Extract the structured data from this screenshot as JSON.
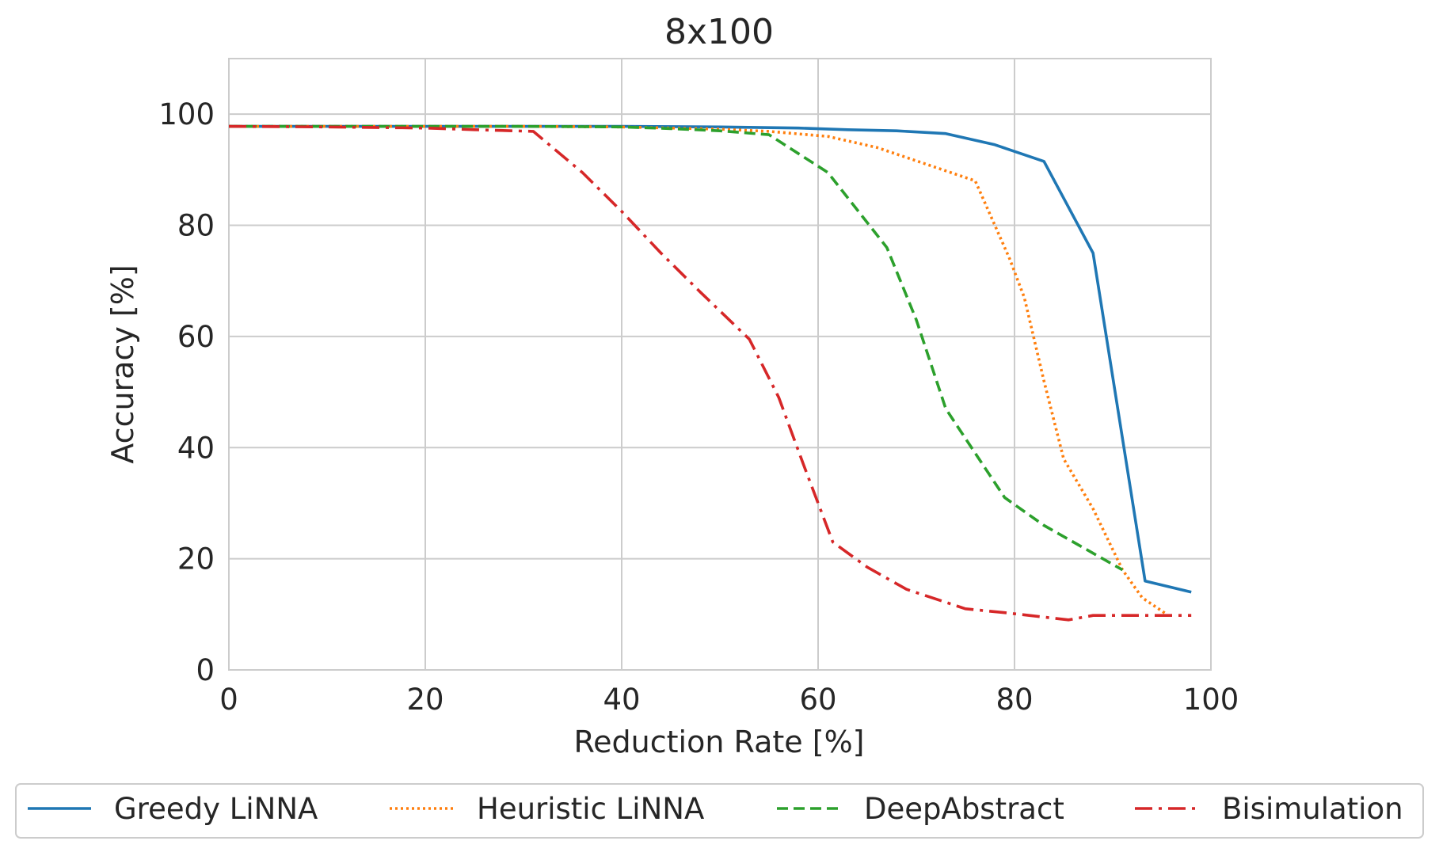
{
  "chart_data": {
    "type": "line",
    "title": "8x100",
    "xlabel": "Reduction Rate [%]",
    "ylabel": "Accuracy [%]",
    "xlim": [
      0,
      100
    ],
    "ylim": [
      0,
      110
    ],
    "xticks": [
      0,
      20,
      40,
      60,
      80,
      100
    ],
    "yticks": [
      0,
      20,
      40,
      60,
      80,
      100
    ],
    "grid": true,
    "legend_position": "bottom",
    "series": [
      {
        "name": "Greedy LiNNA",
        "color": "#1f77b4",
        "style": "solid",
        "points": [
          [
            0,
            97.8
          ],
          [
            10,
            97.8
          ],
          [
            20,
            97.8
          ],
          [
            30,
            97.8
          ],
          [
            40,
            97.8
          ],
          [
            50,
            97.7
          ],
          [
            58,
            97.5
          ],
          [
            63,
            97.2
          ],
          [
            68,
            97.0
          ],
          [
            73,
            96.5
          ],
          [
            78,
            94.5
          ],
          [
            83,
            91.5
          ],
          [
            88,
            75.0
          ],
          [
            93.3,
            16.0
          ],
          [
            98,
            14.0
          ]
        ]
      },
      {
        "name": "Heuristic LiNNA",
        "color": "#ff7f0e",
        "style": "dotted",
        "points": [
          [
            0,
            97.8
          ],
          [
            10,
            97.8
          ],
          [
            20,
            97.8
          ],
          [
            30,
            97.8
          ],
          [
            40,
            97.7
          ],
          [
            50,
            97.3
          ],
          [
            55,
            96.9
          ],
          [
            61,
            96.0
          ],
          [
            66,
            94.0
          ],
          [
            71,
            91.0
          ],
          [
            76,
            88.0
          ],
          [
            79.5,
            74.0
          ],
          [
            81,
            67.0
          ],
          [
            83,
            52.0
          ],
          [
            85,
            38.0
          ],
          [
            88,
            29.0
          ],
          [
            91,
            18.0
          ],
          [
            93,
            13.0
          ],
          [
            95.5,
            10.0
          ]
        ]
      },
      {
        "name": "DeepAbstract",
        "color": "#2ca02c",
        "style": "dashed",
        "points": [
          [
            0,
            97.8
          ],
          [
            10,
            97.8
          ],
          [
            20,
            97.8
          ],
          [
            30,
            97.8
          ],
          [
            40,
            97.7
          ],
          [
            45,
            97.4
          ],
          [
            50,
            97.0
          ],
          [
            55,
            96.3
          ],
          [
            61,
            89.5
          ],
          [
            67,
            76.0
          ],
          [
            70,
            63.0
          ],
          [
            73,
            47.0
          ],
          [
            76,
            39.0
          ],
          [
            79,
            31.0
          ],
          [
            83,
            26.0
          ],
          [
            87,
            22.0
          ],
          [
            91,
            18.0
          ]
        ]
      },
      {
        "name": "Bisimulation",
        "color": "#d62728",
        "style": "dashdot",
        "points": [
          [
            0,
            97.8
          ],
          [
            10,
            97.7
          ],
          [
            20,
            97.5
          ],
          [
            25,
            97.2
          ],
          [
            31,
            96.9
          ],
          [
            36,
            89.5
          ],
          [
            40,
            82.5
          ],
          [
            44,
            75.0
          ],
          [
            48,
            68.0
          ],
          [
            53,
            59.5
          ],
          [
            56,
            49.0
          ],
          [
            58.5,
            37.0
          ],
          [
            61.5,
            23.0
          ],
          [
            65,
            18.5
          ],
          [
            69,
            14.5
          ],
          [
            75,
            11.0
          ],
          [
            79,
            10.3
          ],
          [
            85.5,
            9.0
          ],
          [
            88,
            9.8
          ],
          [
            95,
            9.8
          ],
          [
            98,
            9.8
          ]
        ]
      }
    ]
  }
}
